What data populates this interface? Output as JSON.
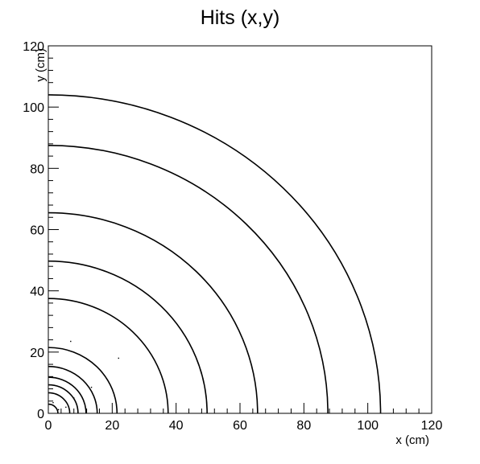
{
  "chart_data": {
    "type": "scatter",
    "title": "Hits (x,y)",
    "xlabel": "x (cm)",
    "ylabel": "y (cm)",
    "xlim": [
      0,
      120
    ],
    "ylim": [
      0,
      120
    ],
    "x_ticks": [
      0,
      20,
      40,
      60,
      80,
      100,
      120
    ],
    "y_ticks": [
      0,
      20,
      40,
      60,
      80,
      100,
      120
    ],
    "minor_ticks_per_major": 4,
    "grid": false,
    "legend": "none",
    "marker_color": "#000000",
    "ring_radii": [
      3,
      6.7,
      9.3,
      11.8,
      15.3,
      21.5,
      37.5,
      49.7,
      65.5,
      87.5,
      104
    ],
    "stray_hits": [
      {
        "x": 1.5,
        "y": 3.5
      },
      {
        "x": 3.2,
        "y": 1.2
      },
      {
        "x": 5.5,
        "y": 2.0
      },
      {
        "x": 8.0,
        "y": 5.0
      },
      {
        "x": 13.5,
        "y": 8.5
      },
      {
        "x": 22.0,
        "y": 18.0
      },
      {
        "x": 7.0,
        "y": 23.5
      }
    ]
  }
}
